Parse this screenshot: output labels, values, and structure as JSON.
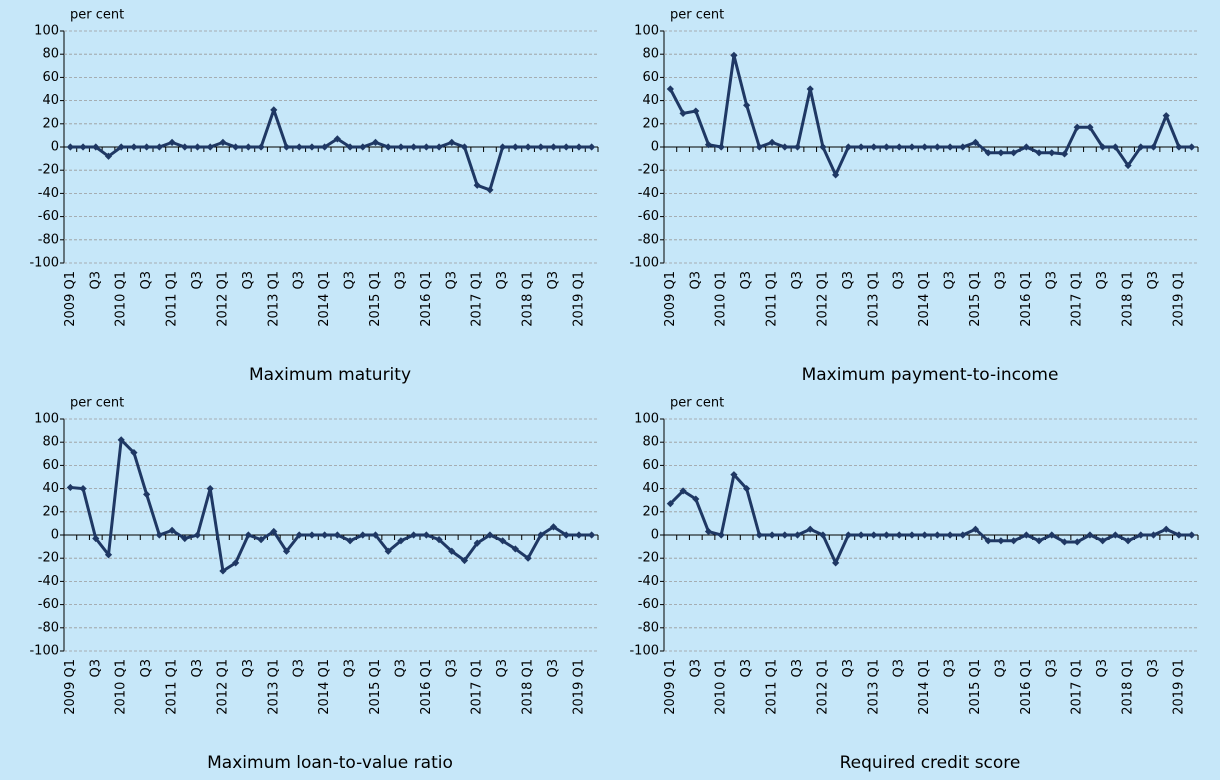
{
  "chart_data": [
    {
      "type": "line",
      "title": "Maximum maturity",
      "y_label": "per cent",
      "categories": [
        "2009 Q1",
        null,
        "Q3",
        null,
        "2010 Q1",
        null,
        "Q3",
        null,
        "2011 Q1",
        null,
        "Q3",
        null,
        "2012 Q1",
        null,
        "Q3",
        null,
        "2013 Q1",
        null,
        "Q3",
        null,
        "2014 Q1",
        null,
        "Q3",
        null,
        "2015 Q1",
        null,
        "Q3",
        null,
        "2016 Q1",
        null,
        "Q3",
        null,
        "2017 Q1",
        null,
        "Q3",
        null,
        "2018 Q1",
        null,
        "Q3",
        null,
        "2019 Q1",
        null
      ],
      "values": [
        0,
        0,
        0,
        -8,
        0,
        0,
        0,
        0,
        4,
        0,
        0,
        0,
        4,
        0,
        0,
        0,
        32,
        0,
        0,
        0,
        0,
        7,
        0,
        0,
        4,
        0,
        0,
        0,
        0,
        0,
        4,
        0,
        -33,
        -37,
        0,
        0,
        0,
        0,
        0,
        0,
        0,
        0
      ],
      "color": "#1f3864",
      "ylim": [
        -100,
        100
      ],
      "yticks": [
        -100,
        -80,
        -60,
        -40,
        -20,
        0,
        20,
        40,
        60,
        80,
        100
      ],
      "grid": true
    },
    {
      "type": "line",
      "title": "Maximum payment-to-income",
      "y_label": "per cent",
      "categories": [
        "2009 Q1",
        null,
        "Q3",
        null,
        "2010 Q1",
        null,
        "Q3",
        null,
        "2011 Q1",
        null,
        "Q3",
        null,
        "2012 Q1",
        null,
        "Q3",
        null,
        "2013 Q1",
        null,
        "Q3",
        null,
        "2014 Q1",
        null,
        "Q3",
        null,
        "2015 Q1",
        null,
        "Q3",
        null,
        "2016 Q1",
        null,
        "Q3",
        null,
        "2017 Q1",
        null,
        "Q3",
        null,
        "2018 Q1",
        null,
        "Q3",
        null,
        "2019 Q1",
        null
      ],
      "values": [
        50,
        29,
        31,
        2,
        0,
        79,
        36,
        0,
        4,
        0,
        0,
        50,
        0,
        -24,
        0,
        0,
        0,
        0,
        0,
        0,
        0,
        0,
        0,
        0,
        4,
        -5,
        -5,
        -5,
        0,
        -5,
        -5,
        -6,
        17,
        17,
        0,
        0,
        -16,
        0,
        0,
        27,
        0,
        0
      ],
      "color": "#1f3864",
      "ylim": [
        -100,
        100
      ],
      "yticks": [
        -100,
        -80,
        -60,
        -40,
        -20,
        0,
        20,
        40,
        60,
        80,
        100
      ],
      "grid": true
    },
    {
      "type": "line",
      "title": "Maximum loan-to-value ratio",
      "y_label": "per cent",
      "categories": [
        "2009 Q1",
        null,
        "Q3",
        null,
        "2010 Q1",
        null,
        "Q3",
        null,
        "2011 Q1",
        null,
        "Q3",
        null,
        "2012 Q1",
        null,
        "Q3",
        null,
        "2013 Q1",
        null,
        "Q3",
        null,
        "2014 Q1",
        null,
        "Q3",
        null,
        "2015 Q1",
        null,
        "Q3",
        null,
        "2016 Q1",
        null,
        "Q3",
        null,
        "2017 Q1",
        null,
        "Q3",
        null,
        "2018 Q1",
        null,
        "Q3",
        null,
        "2019 Q1",
        null
      ],
      "values": [
        41,
        40,
        -3,
        -17,
        82,
        71,
        35,
        0,
        4,
        -3,
        0,
        40,
        -31,
        -24,
        0,
        -4,
        3,
        -14,
        0,
        0,
        0,
        0,
        -5,
        0,
        0,
        -14,
        -5,
        0,
        0,
        -4,
        -14,
        -22,
        -7,
        0,
        -5,
        -12,
        -20,
        0,
        7,
        0,
        0,
        0
      ],
      "color": "#1f3864",
      "ylim": [
        -100,
        100
      ],
      "yticks": [
        -100,
        -80,
        -60,
        -40,
        -20,
        0,
        20,
        40,
        60,
        80,
        100
      ],
      "grid": true
    },
    {
      "type": "line",
      "title": "Required credit score",
      "y_label": "per cent",
      "categories": [
        "2009 Q1",
        null,
        "Q3",
        null,
        "2010 Q1",
        null,
        "Q3",
        null,
        "2011 Q1",
        null,
        "Q3",
        null,
        "2012 Q1",
        null,
        "Q3",
        null,
        "2013 Q1",
        null,
        "Q3",
        null,
        "2014 Q1",
        null,
        "Q3",
        null,
        "2015 Q1",
        null,
        "Q3",
        null,
        "2016 Q1",
        null,
        "Q3",
        null,
        "2017 Q1",
        null,
        "Q3",
        null,
        "2018 Q1",
        null,
        "Q3",
        null,
        "2019 Q1",
        null
      ],
      "values": [
        27,
        38,
        31,
        3,
        0,
        52,
        40,
        0,
        0,
        0,
        0,
        5,
        0,
        -24,
        0,
        0,
        0,
        0,
        0,
        0,
        0,
        0,
        0,
        0,
        5,
        -5,
        -5,
        -5,
        0,
        -5,
        0,
        -6,
        -6,
        0,
        -5,
        0,
        -5,
        0,
        0,
        5,
        0,
        0
      ],
      "color": "#1f3864",
      "ylim": [
        -100,
        100
      ],
      "yticks": [
        -100,
        -80,
        -60,
        -40,
        -20,
        0,
        20,
        40,
        60,
        80,
        100
      ],
      "grid": true
    }
  ]
}
